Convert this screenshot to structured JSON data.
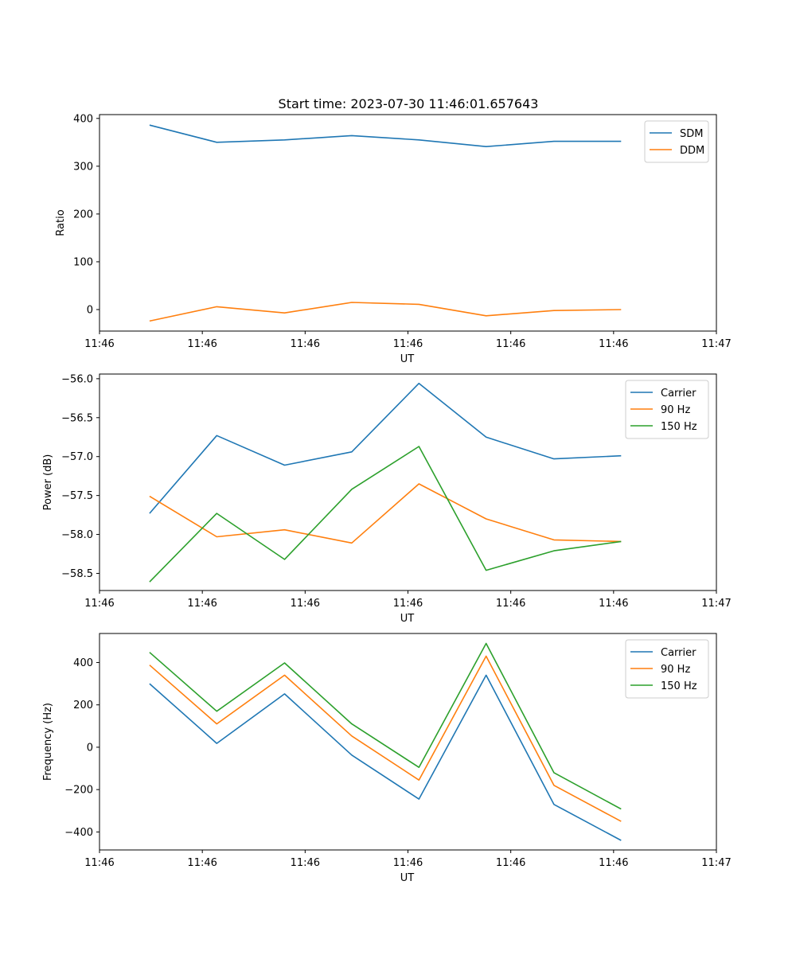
{
  "figure_title": "Start time: 2023-07-30 11:46:01.657643",
  "chart_data": [
    {
      "type": "line",
      "ylabel": "Ratio",
      "xlabel": "UT",
      "xlim": [
        0,
        9
      ],
      "ylim": [
        -45,
        408
      ],
      "yticks": [
        0,
        100,
        200,
        300,
        400
      ],
      "ytick_labels": [
        "0",
        "100",
        "200",
        "300",
        "400"
      ],
      "xticks": [
        0,
        1.5,
        3,
        4.5,
        6,
        7.5,
        9
      ],
      "xtick_labels": [
        "11:46",
        "11:46",
        "11:46",
        "11:46",
        "11:46",
        "11:46",
        "11:47"
      ],
      "legend": "upper-right",
      "x": [
        0.73,
        1.71,
        2.7,
        3.68,
        4.66,
        5.64,
        6.63,
        7.61
      ],
      "series": [
        {
          "name": "SDM",
          "color": "#1f77b4",
          "values": [
            386,
            350,
            355,
            364,
            355,
            341,
            352,
            352
          ]
        },
        {
          "name": "DDM",
          "color": "#ff7f0e",
          "values": [
            -24,
            6,
            -7,
            15,
            11,
            -13,
            -2,
            0
          ]
        }
      ]
    },
    {
      "type": "line",
      "ylabel": "Power (dB)",
      "xlabel": "UT",
      "xlim": [
        0,
        9
      ],
      "ylim": [
        -58.72,
        -55.94
      ],
      "yticks": [
        -58.5,
        -58.0,
        -57.5,
        -57.0,
        -56.5,
        -56.0
      ],
      "ytick_labels": [
        "−58.5",
        "−58.0",
        "−57.5",
        "−57.0",
        "−56.5",
        "−56.0"
      ],
      "xticks": [
        0,
        1.5,
        3,
        4.5,
        6,
        7.5,
        9
      ],
      "xtick_labels": [
        "11:46",
        "11:46",
        "11:46",
        "11:46",
        "11:46",
        "11:46",
        "11:47"
      ],
      "legend": "upper-right",
      "x": [
        0.73,
        1.71,
        2.7,
        3.68,
        4.66,
        5.64,
        6.63,
        7.61
      ],
      "series": [
        {
          "name": "Carrier",
          "color": "#1f77b4",
          "values": [
            -57.73,
            -56.73,
            -57.11,
            -56.94,
            -56.06,
            -56.75,
            -57.03,
            -56.99
          ]
        },
        {
          "name": "90 Hz",
          "color": "#ff7f0e",
          "values": [
            -57.51,
            -58.03,
            -57.94,
            -58.11,
            -57.35,
            -57.8,
            -58.07,
            -58.09
          ]
        },
        {
          "name": "150 Hz",
          "color": "#2ca02c",
          "values": [
            -58.61,
            -57.73,
            -58.32,
            -57.42,
            -56.87,
            -58.46,
            -58.21,
            -58.09
          ]
        }
      ]
    },
    {
      "type": "line",
      "ylabel": "Frequency (Hz)",
      "xlabel": "UT",
      "xlim": [
        0,
        9
      ],
      "ylim": [
        -485,
        537
      ],
      "yticks": [
        -400,
        -200,
        0,
        200,
        400
      ],
      "ytick_labels": [
        "−400",
        "−200",
        "0",
        "200",
        "400"
      ],
      "xticks": [
        0,
        1.5,
        3,
        4.5,
        6,
        7.5,
        9
      ],
      "xtick_labels": [
        "11:46",
        "11:46",
        "11:46",
        "11:46",
        "11:46",
        "11:46",
        "11:47"
      ],
      "legend": "upper-right",
      "x": [
        0.73,
        1.71,
        2.7,
        3.68,
        4.66,
        5.64,
        6.63,
        7.61
      ],
      "series": [
        {
          "name": "Carrier",
          "color": "#1f77b4",
          "values": [
            300,
            18,
            252,
            -37,
            -245,
            340,
            -270,
            -440
          ]
        },
        {
          "name": "90 Hz",
          "color": "#ff7f0e",
          "values": [
            388,
            110,
            340,
            53,
            -155,
            430,
            -180,
            -350
          ]
        },
        {
          "name": "150 Hz",
          "color": "#2ca02c",
          "values": [
            448,
            170,
            398,
            110,
            -95,
            490,
            -120,
            -292
          ]
        }
      ]
    }
  ]
}
